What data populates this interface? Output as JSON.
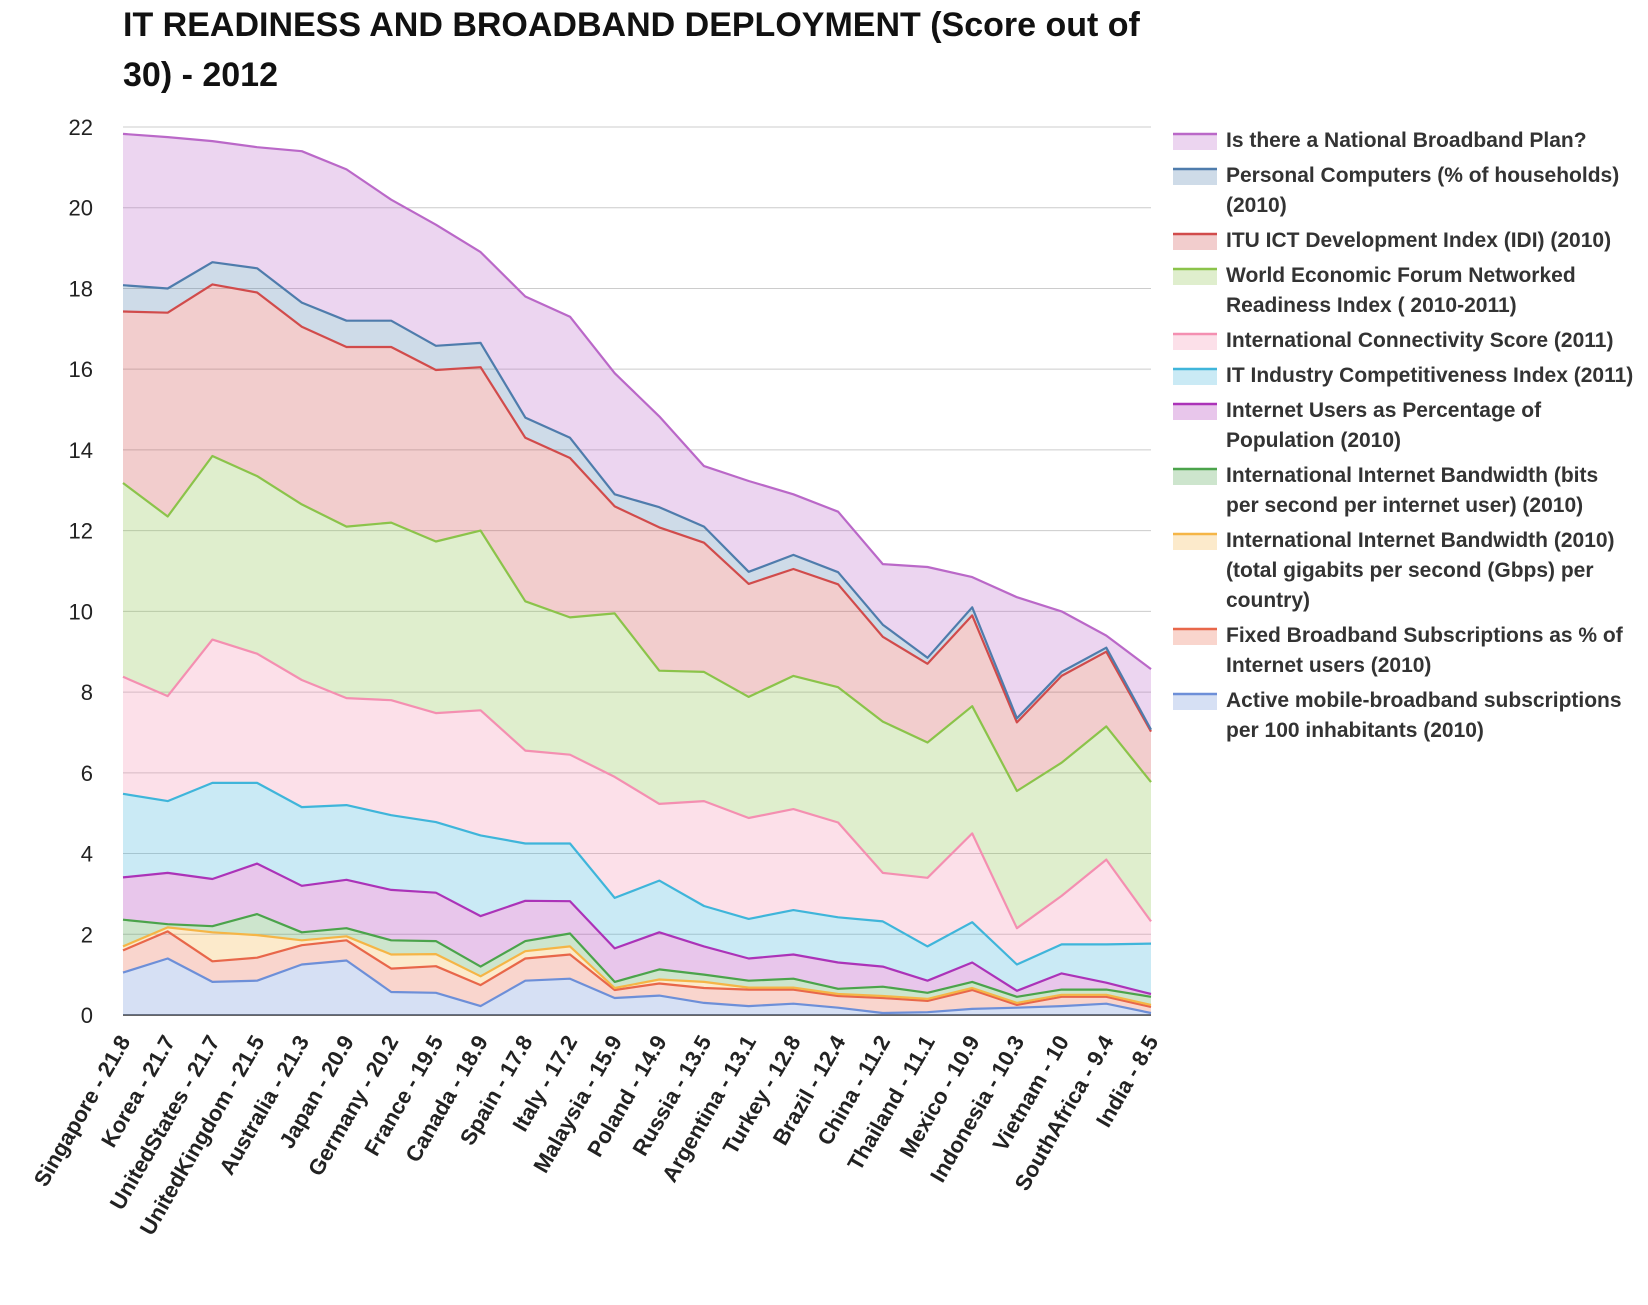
{
  "chart_data": {
    "type": "area",
    "stacked": true,
    "title": "IT READINESS AND BROADBAND DEPLOYMENT (Score out of 30) - 2012",
    "ylim": [
      0,
      22
    ],
    "yticks": [
      0,
      2,
      4,
      6,
      8,
      10,
      12,
      14,
      16,
      18,
      20,
      22
    ],
    "grid": true,
    "legend_position": "right",
    "categories": [
      "Singapore - 21.8",
      "Korea - 21.7",
      "UnitedStates - 21.7",
      "UnitedKingdom - 21.5",
      "Australia - 21.3",
      "Japan - 20.9",
      "Germany - 20.2",
      "France - 19.5",
      "Canada - 18.9",
      "Spain - 17.8",
      "Italy - 17.2",
      "Malaysia - 15.9",
      "Poland - 14.9",
      "Russia - 13.5",
      "Argentina - 13.1",
      "Turkey - 12.8",
      "Brazil - 12.4",
      "China - 11.2",
      "Thailand - 11.1",
      "Mexico - 10.9",
      "Indonesia - 10.3",
      "Vietnam - 10",
      "SouthAfrica - 9.4",
      "India - 8.5"
    ],
    "series": [
      {
        "name": "Active mobile-broadband subscriptions per 100 inhabitants (2010)",
        "color": "#6d8fd8",
        "values": [
          1.05,
          1.4,
          0.82,
          0.85,
          1.25,
          1.35,
          0.57,
          0.55,
          0.22,
          0.85,
          0.9,
          0.42,
          0.48,
          0.3,
          0.22,
          0.28,
          0.18,
          0.05,
          0.07,
          0.15,
          0.18,
          0.22,
          0.28,
          0.05
        ]
      },
      {
        "name": "Fixed Broadband Subscriptions as % of Internet users (2010)",
        "color": "#e8674a",
        "values": [
          0.55,
          0.67,
          0.51,
          0.57,
          0.48,
          0.5,
          0.58,
          0.66,
          0.52,
          0.55,
          0.6,
          0.2,
          0.3,
          0.37,
          0.41,
          0.35,
          0.29,
          0.37,
          0.28,
          0.47,
          0.07,
          0.23,
          0.17,
          0.15
        ]
      },
      {
        "name": "International Internet Bandwidth (2010) (total gigabits per second (Gbps) per country)",
        "color": "#f5b546",
        "values": [
          0.1,
          0.1,
          0.72,
          0.56,
          0.12,
          0.1,
          0.35,
          0.3,
          0.22,
          0.18,
          0.2,
          0.05,
          0.1,
          0.15,
          0.05,
          0.05,
          0.05,
          0.05,
          0.05,
          0.05,
          0.05,
          0.05,
          0.05,
          0.05
        ]
      },
      {
        "name": "International Internet Bandwidth (bits per second per internet user) (2010)",
        "color": "#4ba34b",
        "values": [
          0.66,
          0.08,
          0.15,
          0.52,
          0.2,
          0.2,
          0.35,
          0.32,
          0.24,
          0.25,
          0.32,
          0.15,
          0.25,
          0.18,
          0.17,
          0.22,
          0.13,
          0.23,
          0.15,
          0.15,
          0.15,
          0.13,
          0.13,
          0.2
        ]
      },
      {
        "name": "Internet Users as Percentage of Population (2010)",
        "color": "#ab33b8",
        "values": [
          1.05,
          1.27,
          1.17,
          1.25,
          1.15,
          1.2,
          1.25,
          1.2,
          1.25,
          1.0,
          0.8,
          0.83,
          0.92,
          0.7,
          0.55,
          0.6,
          0.65,
          0.5,
          0.3,
          0.48,
          0.15,
          0.4,
          0.17,
          0.07
        ]
      },
      {
        "name": "IT Industry Competitiveness Index (2011)",
        "color": "#3fb5da",
        "values": [
          2.07,
          1.78,
          2.38,
          2.0,
          1.95,
          1.85,
          1.85,
          1.75,
          2.0,
          1.42,
          1.43,
          1.25,
          1.28,
          1.0,
          0.98,
          1.1,
          1.12,
          1.12,
          0.85,
          1.0,
          0.65,
          0.72,
          0.95,
          1.25
        ]
      },
      {
        "name": "International Connectivity Score (2011)",
        "color": "#f48fb1",
        "values": [
          2.9,
          2.6,
          3.55,
          3.2,
          3.15,
          2.65,
          2.85,
          2.7,
          3.1,
          2.3,
          2.2,
          3.0,
          1.9,
          2.6,
          2.5,
          2.5,
          2.35,
          1.2,
          1.7,
          2.2,
          0.9,
          1.2,
          2.1,
          0.55
        ]
      },
      {
        "name": "World Economic Forum Networked Readiness Index ( 2010-2011)",
        "color": "#8bc34a",
        "values": [
          4.8,
          4.45,
          4.55,
          4.4,
          4.35,
          4.25,
          4.4,
          4.25,
          4.45,
          3.7,
          3.4,
          4.05,
          3.3,
          3.2,
          3.0,
          3.3,
          3.35,
          3.75,
          3.35,
          3.15,
          3.4,
          3.3,
          3.3,
          3.45
        ]
      },
      {
        "name": "ITU ICT Development Index (IDI) (2010)",
        "color": "#d14b4b",
        "values": [
          4.25,
          5.05,
          4.25,
          4.55,
          4.4,
          4.45,
          4.35,
          4.25,
          4.05,
          4.05,
          3.95,
          2.65,
          3.55,
          3.2,
          2.8,
          2.65,
          2.55,
          2.1,
          1.95,
          2.25,
          1.7,
          2.15,
          1.85,
          1.25
        ]
      },
      {
        "name": "Personal Computers (% of households) (2010)",
        "color": "#4f7cac",
        "values": [
          0.65,
          0.6,
          0.55,
          0.6,
          0.6,
          0.65,
          0.65,
          0.6,
          0.6,
          0.5,
          0.5,
          0.3,
          0.5,
          0.4,
          0.3,
          0.35,
          0.3,
          0.3,
          0.15,
          0.2,
          0.1,
          0.1,
          0.1,
          0.05
        ]
      },
      {
        "name": "Is there a National Broadband Plan?",
        "color": "#ba68c8",
        "values": [
          3.75,
          3.75,
          3.0,
          3.0,
          3.75,
          3.75,
          3.0,
          3.0,
          2.25,
          3.0,
          3.0,
          3.0,
          2.25,
          1.5,
          2.25,
          1.5,
          1.5,
          1.5,
          2.25,
          0.75,
          3.0,
          1.5,
          0.3,
          1.5
        ]
      }
    ]
  }
}
